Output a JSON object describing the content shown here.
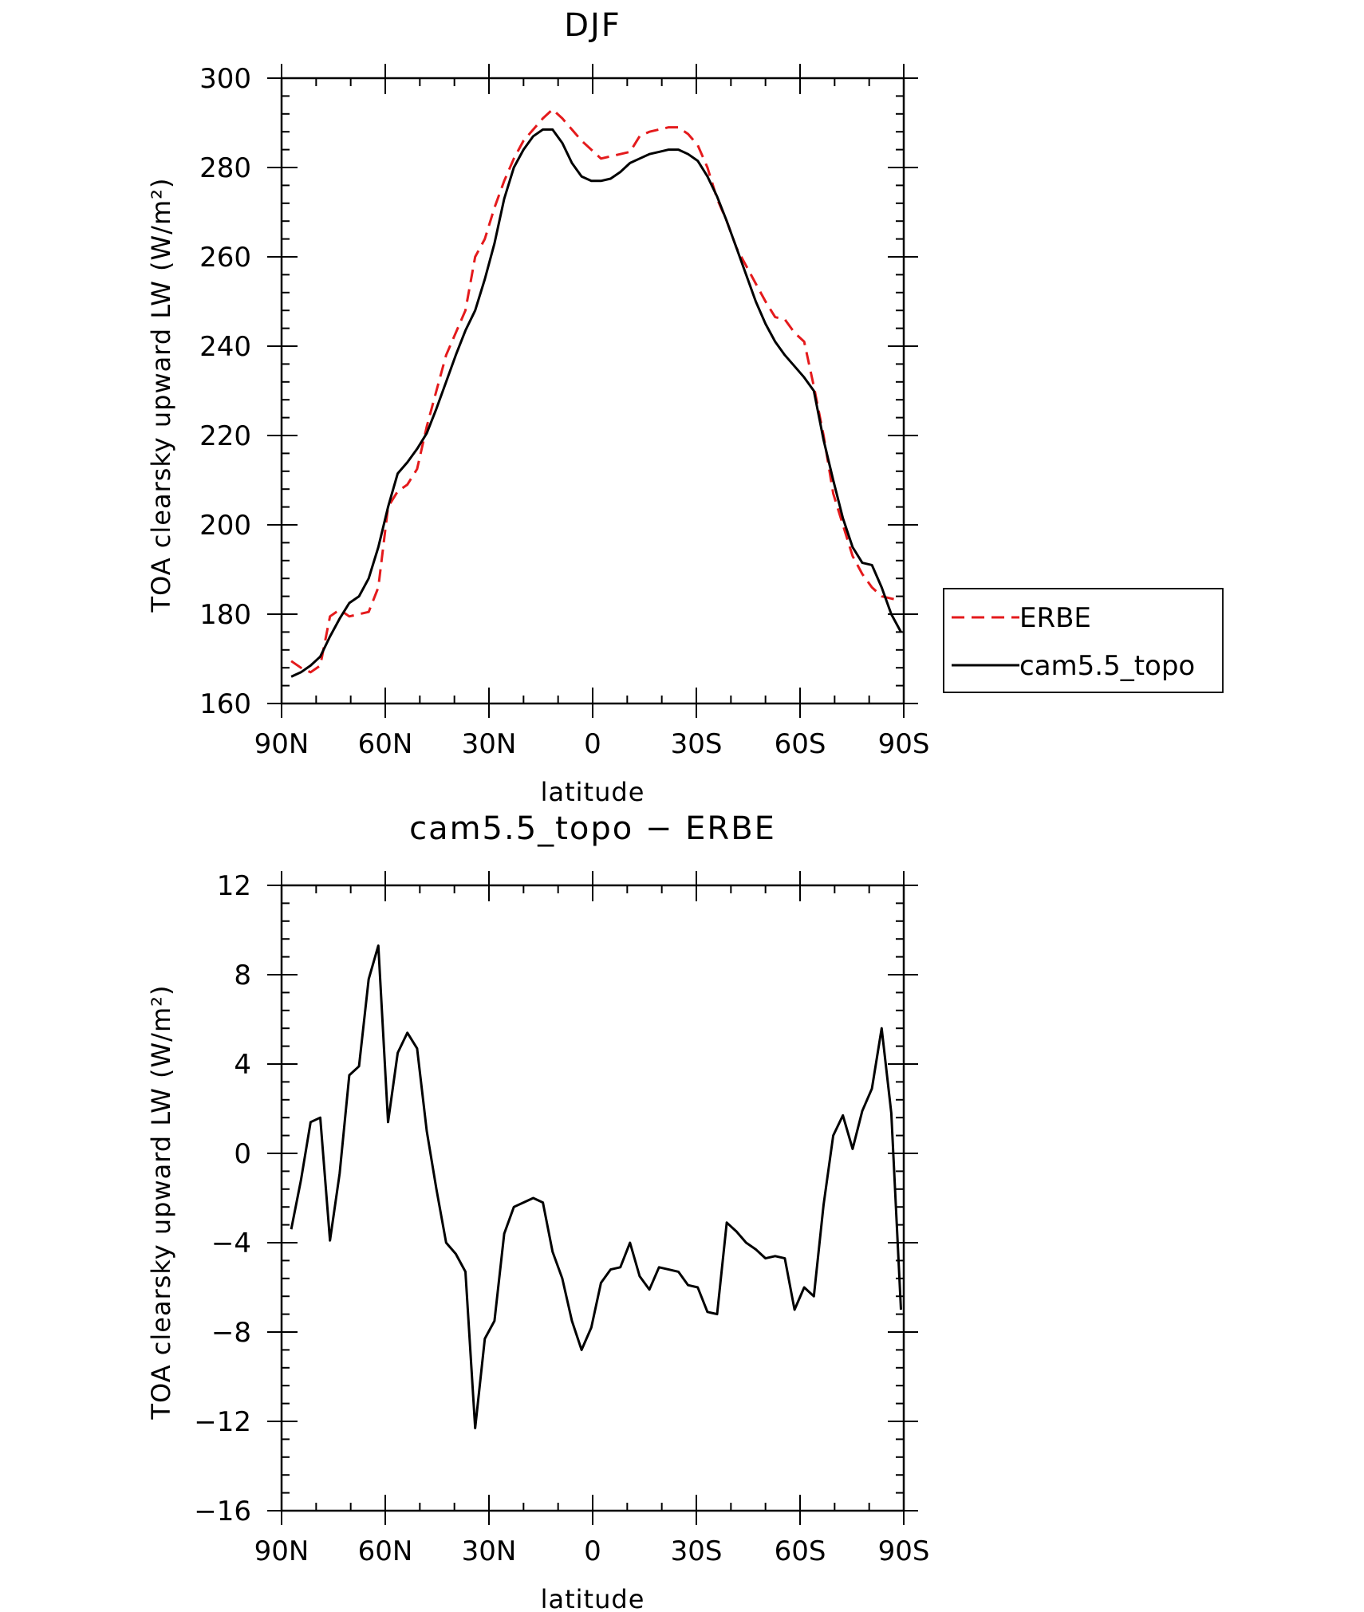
{
  "chart_data": [
    {
      "type": "line",
      "title": "DJF",
      "xlabel": "latitude",
      "ylabel": "TOA clearsky upward LW (W/m²)",
      "xlim": [
        -90,
        90
      ],
      "ylim": [
        160,
        300
      ],
      "x_direction": "north-to-south",
      "x_ticks": [
        -90,
        -60,
        -30,
        0,
        30,
        60,
        90
      ],
      "x_tick_labels": [
        "90N",
        "60N",
        "30N",
        "0",
        "30S",
        "60S",
        "90S"
      ],
      "y_ticks": [
        160,
        180,
        200,
        220,
        240,
        260,
        280,
        300
      ],
      "y_tick_labels": [
        "160",
        "180",
        "200",
        "220",
        "240",
        "260",
        "280",
        "300"
      ],
      "legend": {
        "position": "right",
        "entries": [
          "ERBE",
          "cam5.5_topo"
        ]
      },
      "series": [
        {
          "name": "ERBE",
          "color": "#e41a1c",
          "style": "dashed",
          "x": [
            -87.2,
            -84.4,
            -81.6,
            -78.8,
            -76.0,
            -73.2,
            -70.4,
            -67.6,
            -64.8,
            -62.0,
            -59.2,
            -56.4,
            -53.6,
            -50.8,
            -48.0,
            -45.2,
            -42.4,
            -39.6,
            -36.8,
            -34.0,
            -31.2,
            -28.4,
            -25.6,
            -22.8,
            -20.0,
            -17.2,
            -14.4,
            -11.6,
            -8.8,
            -6.0,
            -3.2,
            -0.4,
            2.4,
            5.2,
            8.0,
            10.8,
            13.6,
            16.4,
            19.2,
            22.0,
            24.8,
            27.6,
            30.4,
            33.2,
            36.0,
            38.8,
            41.6,
            44.4,
            47.2,
            50.0,
            52.8,
            55.6,
            58.4,
            61.2,
            64.0,
            66.8,
            69.6,
            72.4,
            75.2,
            78.0,
            80.8,
            83.6,
            86.4,
            89.2
          ],
          "values": [
            169.5,
            168.0,
            167.0,
            168.5,
            179.5,
            181.0,
            179.5,
            180.0,
            180.5,
            186.0,
            204.0,
            207.5,
            209.0,
            212.5,
            222.0,
            230.0,
            238.0,
            243.0,
            248.0,
            260.0,
            264.0,
            271.0,
            277.0,
            282.0,
            286.0,
            288.5,
            291.0,
            293.0,
            291.0,
            288.5,
            286.0,
            284.0,
            282.0,
            282.5,
            283.0,
            283.5,
            287.0,
            288.0,
            288.5,
            289.0,
            289.0,
            287.5,
            285.0,
            280.0,
            273.0,
            268.0,
            262.0,
            258.0,
            254.0,
            250.0,
            246.5,
            246.0,
            243.0,
            241.0,
            231.0,
            220.0,
            207.0,
            200.0,
            193.0,
            189.0,
            186.0,
            184.0,
            183.5,
            183.0
          ]
        },
        {
          "name": "cam5.5_topo",
          "color": "#000000",
          "style": "solid",
          "x": [
            -87.2,
            -84.4,
            -81.6,
            -78.8,
            -76.0,
            -73.2,
            -70.4,
            -67.6,
            -64.8,
            -62.0,
            -59.2,
            -56.4,
            -53.6,
            -50.8,
            -48.0,
            -45.2,
            -42.4,
            -39.6,
            -36.8,
            -34.0,
            -31.2,
            -28.4,
            -25.6,
            -22.8,
            -20.0,
            -17.2,
            -14.4,
            -11.6,
            -8.8,
            -6.0,
            -3.2,
            -0.4,
            2.4,
            5.2,
            8.0,
            10.8,
            13.6,
            16.4,
            19.2,
            22.0,
            24.8,
            27.6,
            30.4,
            33.2,
            36.0,
            38.8,
            41.6,
            44.4,
            47.2,
            50.0,
            52.8,
            55.6,
            58.4,
            61.2,
            64.0,
            66.8,
            69.6,
            72.4,
            75.2,
            78.0,
            80.8,
            83.6,
            86.4,
            89.2
          ],
          "values": [
            166.0,
            167.0,
            168.5,
            170.5,
            175.0,
            179.0,
            182.5,
            184.0,
            188.0,
            195.0,
            204.0,
            211.5,
            214.0,
            217.0,
            220.5,
            226.0,
            232.0,
            238.0,
            243.5,
            248.0,
            255.0,
            263.0,
            273.0,
            280.0,
            284.0,
            287.0,
            288.5,
            288.5,
            285.5,
            281.0,
            278.0,
            277.0,
            277.0,
            277.5,
            279.0,
            281.0,
            282.0,
            283.0,
            283.5,
            284.0,
            284.0,
            283.0,
            281.5,
            278.0,
            273.5,
            268.0,
            262.0,
            256.0,
            250.0,
            245.0,
            241.0,
            238.0,
            235.5,
            233.0,
            230.0,
            219.0,
            210.0,
            201.5,
            195.0,
            191.5,
            191.0,
            186.0,
            180.0,
            176.0
          ]
        }
      ]
    },
    {
      "type": "line",
      "title": "cam5.5_topo − ERBE",
      "xlabel": "latitude",
      "ylabel": "TOA clearsky upward LW (W/m²)",
      "xlim": [
        -90,
        90
      ],
      "ylim": [
        -16,
        12
      ],
      "x_direction": "north-to-south",
      "x_ticks": [
        -90,
        -60,
        -30,
        0,
        30,
        60,
        90
      ],
      "x_tick_labels": [
        "90N",
        "60N",
        "30N",
        "0",
        "30S",
        "60S",
        "90S"
      ],
      "y_ticks": [
        -16,
        -12,
        -8,
        -4,
        0,
        4,
        8,
        12
      ],
      "y_tick_labels": [
        "−16",
        "−12",
        "−8",
        "−4",
        "0",
        "4",
        "8",
        "12"
      ],
      "series": [
        {
          "name": "cam5.5_topo - ERBE",
          "color": "#000000",
          "style": "solid",
          "x": [
            -87.2,
            -84.4,
            -81.6,
            -78.8,
            -76.0,
            -73.2,
            -70.4,
            -67.6,
            -64.8,
            -62.0,
            -59.2,
            -56.4,
            -53.6,
            -50.8,
            -48.0,
            -45.2,
            -42.4,
            -39.6,
            -36.8,
            -34.0,
            -31.2,
            -28.4,
            -25.6,
            -22.8,
            -20.0,
            -17.2,
            -14.4,
            -11.6,
            -8.8,
            -6.0,
            -3.2,
            -0.4,
            2.4,
            5.2,
            8.0,
            10.8,
            13.6,
            16.4,
            19.2,
            22.0,
            24.8,
            27.6,
            30.4,
            33.2,
            36.0,
            38.8,
            41.6,
            44.4,
            47.2,
            50.0,
            52.8,
            55.6,
            58.4,
            61.2,
            64.0,
            66.8,
            69.6,
            72.4,
            75.2,
            78.0,
            80.8,
            83.6,
            86.4,
            89.2
          ],
          "values": [
            -3.4,
            -1.2,
            1.4,
            1.6,
            -3.9,
            -0.9,
            3.5,
            3.9,
            7.8,
            9.3,
            1.4,
            4.5,
            5.4,
            4.7,
            1.0,
            -1.6,
            -4.0,
            -4.5,
            -5.3,
            -12.3,
            -8.3,
            -7.5,
            -3.6,
            -2.4,
            -2.2,
            -2.0,
            -2.2,
            -4.4,
            -5.6,
            -7.5,
            -8.8,
            -7.8,
            -5.8,
            -5.2,
            -5.1,
            -4.0,
            -5.5,
            -6.1,
            -5.1,
            -5.2,
            -5.3,
            -5.9,
            -6.0,
            -7.1,
            -7.2,
            -3.1,
            -3.5,
            -4.0,
            -4.3,
            -4.7,
            -4.6,
            -4.7,
            -7.0,
            -6.0,
            -6.4,
            -2.3,
            0.8,
            1.7,
            0.2,
            1.9,
            2.9,
            5.6,
            1.8,
            -7.0
          ]
        }
      ]
    }
  ]
}
